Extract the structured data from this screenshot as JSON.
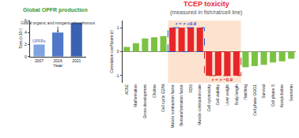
{
  "chart_data": [
    {
      "type": "bar",
      "title": "Global OPFR production",
      "xlabel": "Year",
      "ylabel": "Tons (×10⁵)",
      "categories": [
        "2007",
        "2016",
        "2021"
      ],
      "values": [
        2,
        4,
        5.6
      ],
      "colors": [
        "#7fa3e0",
        "#4f78c8",
        "#3a62b4"
      ],
      "ylim": [
        0,
        6
      ],
      "yticks": [
        0,
        2,
        4,
        6
      ],
      "annotations": [
        {
          "text": "OPFRs",
          "category": "2007"
        },
        {
          "text": "Global organic and inorganic phosphorous",
          "category": "2016"
        }
      ]
    },
    {
      "type": "bar",
      "title": "TCEP toxicity",
      "subtitle": "(measured in fish/rat/cell line)",
      "ylabel": "Correlation coefficient (r)",
      "categories": [
        "AChE",
        "Malformation",
        "Gross development",
        "Choline",
        "Cell cycle G2/M",
        "Muscle contraction factor",
        "Biotransformation factor",
        "ROS",
        "Muscle contraction rate",
        "Cell cytotoxicity",
        "Cell viability",
        "Liver weight",
        "Body length",
        "Hatching",
        "Cell phase G0/G1",
        "Survival",
        "Cell phase S",
        "Acetylcholine",
        "Serotonin"
      ],
      "values": [
        0.2,
        0.35,
        0.55,
        0.6,
        0.65,
        1.0,
        1.0,
        1.0,
        1.0,
        -1.0,
        -1.0,
        -1.0,
        -1.0,
        -0.65,
        -0.6,
        -0.55,
        -0.45,
        -0.4,
        -0.3
      ],
      "colors": [
        "#7cc242",
        "#7cc242",
        "#7cc242",
        "#7cc242",
        "#7cc242",
        "#e8262a",
        "#e8262a",
        "#e8262a",
        "#e8262a",
        "#e8262a",
        "#e8262a",
        "#e8262a",
        "#e8262a",
        "#7cc242",
        "#7cc242",
        "#7cc242",
        "#7cc242",
        "#7cc242",
        "#7cc242"
      ],
      "ylim": [
        -1.3,
        1.3
      ],
      "yticks": [
        -1,
        0,
        1
      ],
      "annotations": [
        {
          "text": "r = > +0.9",
          "category": "ROS"
        },
        {
          "text": "r = > −0.9",
          "category": "Liver weight"
        }
      ]
    }
  ]
}
